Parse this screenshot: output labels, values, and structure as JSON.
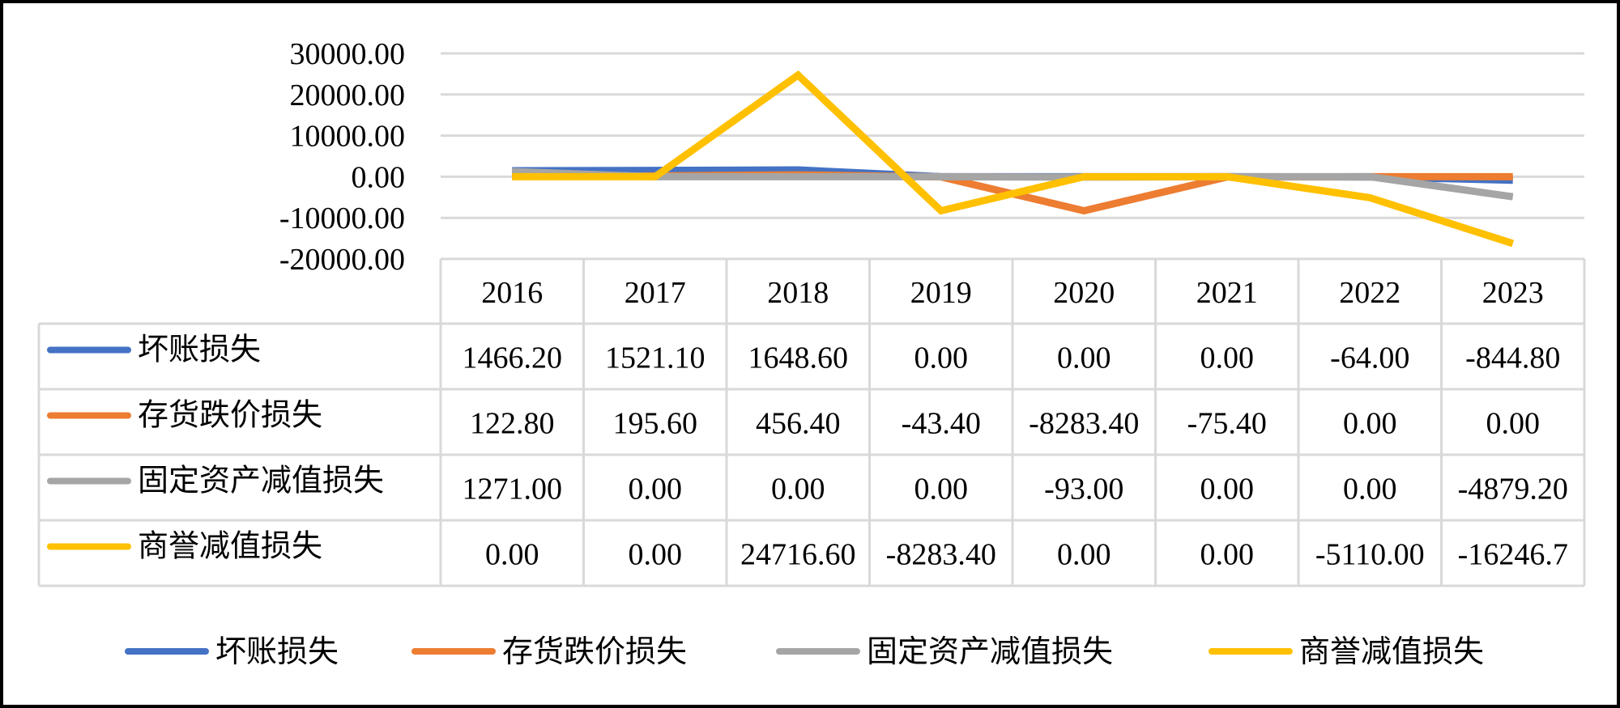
{
  "chart_data": {
    "type": "line",
    "title": "",
    "xlabel": "",
    "ylabel": "",
    "categories": [
      "2016",
      "2017",
      "2018",
      "2019",
      "2020",
      "2021",
      "2022",
      "2023"
    ],
    "ylim": [
      -20000,
      30000
    ],
    "yticks": [
      30000,
      20000,
      10000,
      0,
      -10000,
      -20000
    ],
    "ytick_labels": [
      "30000.00",
      "20000.00",
      "10000.00",
      "0.00",
      "-10000.00",
      "-20000.00"
    ],
    "grid": true,
    "legend_position": "bottom",
    "data_table": true,
    "series": [
      {
        "name": "坏账损失",
        "color": "#4472C4",
        "values": [
          1466.2,
          1521.1,
          1648.6,
          0,
          0,
          0,
          -64,
          -844.8
        ],
        "labels": [
          "1466.20",
          "1521.10",
          "1648.60",
          "0.00",
          "0.00",
          "0.00",
          "-64.00",
          "-844.80"
        ]
      },
      {
        "name": "存货跌价损失",
        "color": "#ED7D31",
        "values": [
          122.8,
          195.6,
          456.4,
          -43.4,
          -8283.4,
          -75.4,
          0,
          0
        ],
        "labels": [
          "122.80",
          "195.60",
          "456.40",
          "-43.40",
          "-8283.40",
          "-75.40",
          "0.00",
          "0.00"
        ]
      },
      {
        "name": "固定资产减值损失",
        "color": "#A5A5A5",
        "values": [
          1271,
          0,
          0,
          0,
          -93,
          0,
          0,
          -4879.2
        ],
        "labels": [
          "1271.00",
          "0.00",
          "0.00",
          "0.00",
          "-93.00",
          "0.00",
          "0.00",
          "-4879.20"
        ]
      },
      {
        "name": "商誉减值损失",
        "color": "#FFC000",
        "values": [
          0,
          0,
          24716.6,
          -8283.4,
          0,
          0,
          -5110,
          -16246.7
        ],
        "labels": [
          "0.00",
          "0.00",
          "24716.60",
          "-8283.40",
          "0.00",
          "0.00",
          "-5110.00",
          "-16246.7"
        ]
      }
    ]
  }
}
